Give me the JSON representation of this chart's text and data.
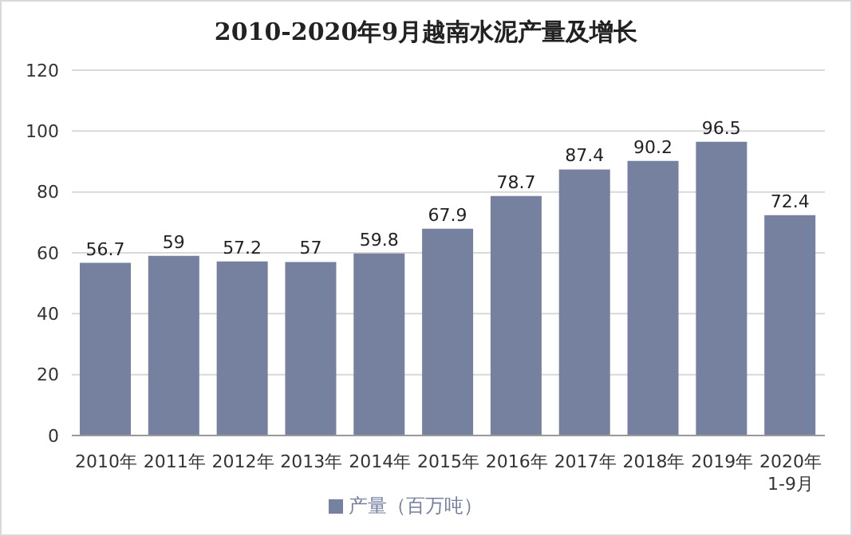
{
  "chart_data": {
    "type": "bar",
    "title": "2010-2020年9月越南水泥产量及增长",
    "categories": [
      "2010年",
      "2011年",
      "2012年",
      "2013年",
      "2014年",
      "2015年",
      "2016年",
      "2017年",
      "2018年",
      "2019年",
      "2020年\n1-9月"
    ],
    "series": [
      {
        "name": "产量（百万吨）",
        "color": "#76819f",
        "values": [
          56.7,
          59,
          57.2,
          57,
          59.8,
          67.9,
          78.7,
          87.4,
          90.2,
          96.5,
          72.4
        ]
      }
    ],
    "ylim": [
      0,
      120
    ],
    "yticks": [
      0,
      20,
      40,
      60,
      80,
      100,
      120
    ],
    "grid": "y",
    "legend": "bottom",
    "data_labels": true
  }
}
